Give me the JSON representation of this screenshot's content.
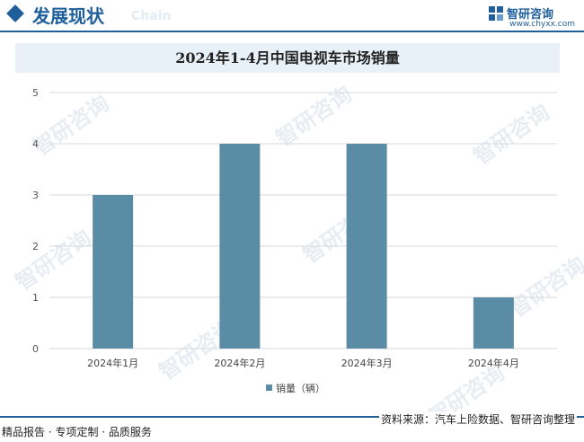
{
  "header": {
    "title": "发展现状",
    "title_en": "Chain",
    "brand_name": "智研咨询",
    "brand_url": "www.chyxx.com",
    "accent_color": "#1f5f9b"
  },
  "watermark": "智研咨询",
  "chart_data": {
    "type": "bar",
    "title": "2024年1-4月中国电视车市场销量",
    "categories": [
      "2024年1月",
      "2024年2月",
      "2024年3月",
      "2024年4月"
    ],
    "series": [
      {
        "name": "销量（辆）",
        "values": [
          3,
          4,
          4,
          1
        ],
        "color": "#5b8ca5"
      }
    ],
    "ylim": [
      0,
      5
    ],
    "yticks": [
      0,
      1,
      2,
      3,
      4,
      5
    ],
    "grid": true,
    "legend_position": "bottom"
  },
  "footer": {
    "left": "精品报告 · 专项定制 · 品质服务",
    "right": "资料来源：汽车上险数据、智研咨询整理"
  }
}
